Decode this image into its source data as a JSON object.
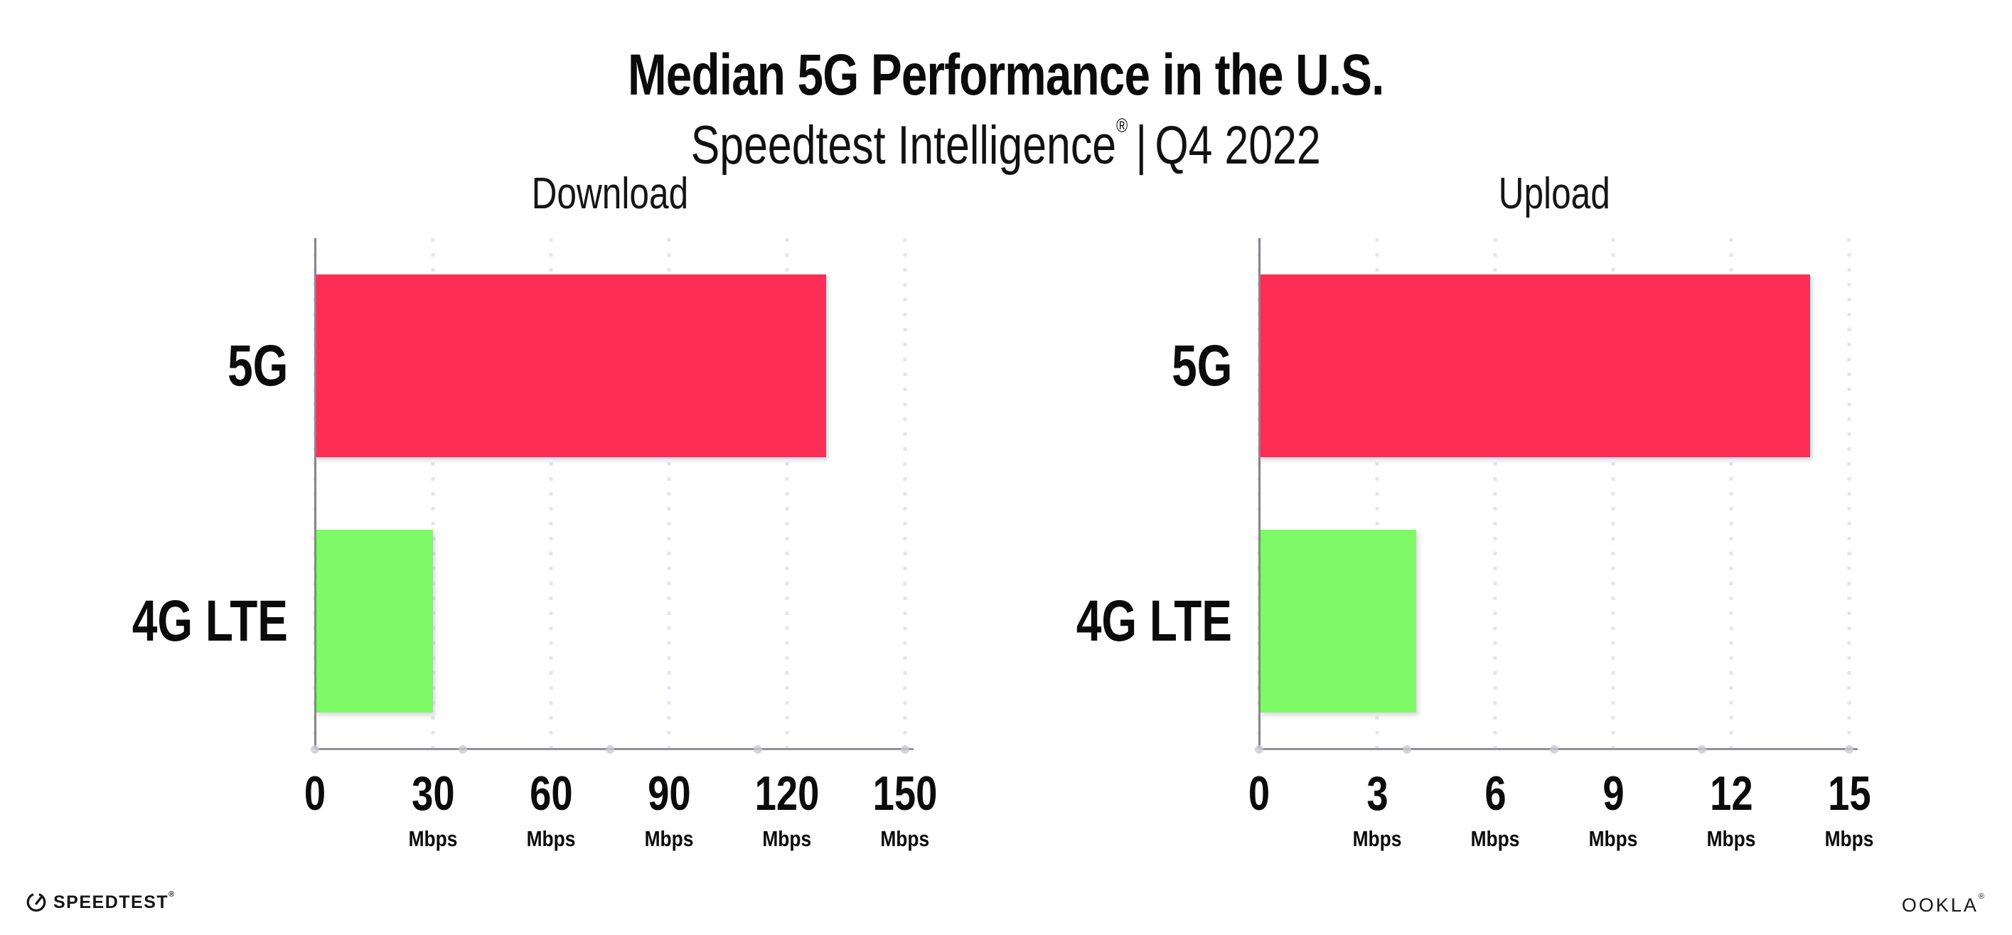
{
  "header": {
    "title": "Median 5G Performance in the U.S.",
    "subtitle": {
      "product": "Speedtest Intelligence",
      "trademark": "®",
      "separator": "|",
      "period": "Q4 2022"
    }
  },
  "chart_data": [
    {
      "type": "bar",
      "orientation": "horizontal",
      "title": "Download",
      "categories": [
        "5G",
        "4G LTE"
      ],
      "values": [
        130,
        30
      ],
      "unit": "Mbps",
      "xlim": [
        0,
        150
      ],
      "xticks": [
        0,
        30,
        60,
        90,
        120,
        150
      ],
      "tick_unit_label": "Mbps",
      "grid": "vertical-dotted",
      "legend": "none",
      "bar_colors": [
        "#FD2D56",
        "#7DFA66"
      ]
    },
    {
      "type": "bar",
      "orientation": "horizontal",
      "title": "Upload",
      "categories": [
        "5G",
        "4G LTE"
      ],
      "values": [
        14,
        4
      ],
      "unit": "Mbps",
      "xlim": [
        0,
        15
      ],
      "xticks": [
        0,
        3,
        6,
        9,
        12,
        15
      ],
      "tick_unit_label": "Mbps",
      "grid": "vertical-dotted",
      "legend": "none",
      "bar_colors": [
        "#FD2D56",
        "#7DFA66"
      ]
    }
  ],
  "colors": {
    "bar_5g": "#FD2D56",
    "bar_4g_lte": "#7DFA66",
    "gridline": "#E5E5EF",
    "x_axis_line": "#90909A",
    "y_axis_line": "#86868D",
    "text": "#0B0B0C",
    "background": "#FFFFFF"
  },
  "footer": {
    "speedtest_logo_text": "SPEEDTEST",
    "speedtest_mark": "®",
    "speedtest_icon": "gauge-icon",
    "ookla_logo_text": "OOKLA",
    "ookla_mark": "®"
  }
}
